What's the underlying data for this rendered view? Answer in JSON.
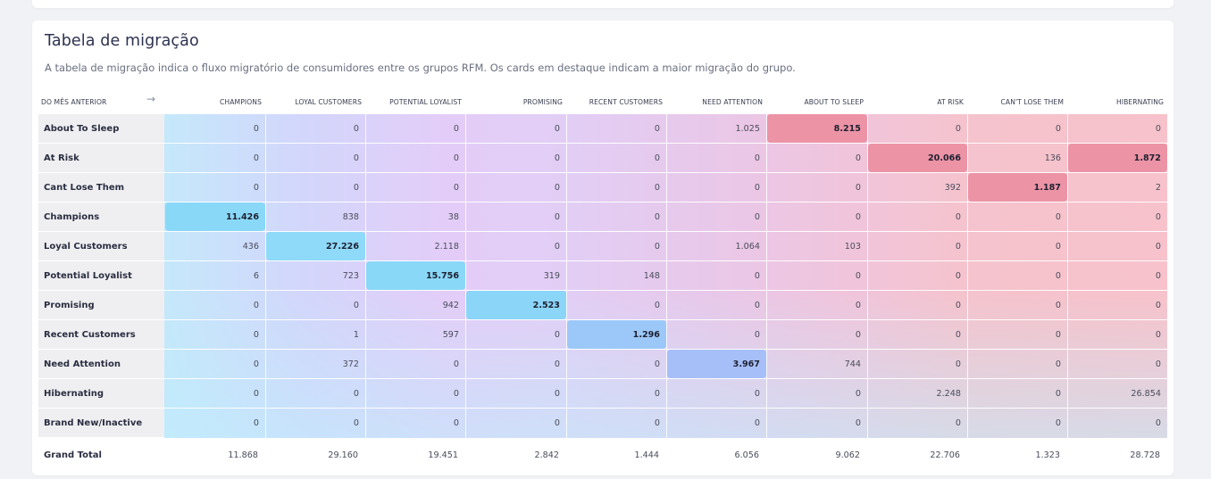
{
  "title": "Tabela de migração",
  "subtitle": "A tabela de migração indica o fluxo migratório de consumidores entre os grupos RFM. Os cards em destaque indicam a maior migração do grupo.",
  "corner_label": "DO MÊS ANTERIOR",
  "arrow_icon": "→",
  "columns": [
    "CHAMPIONS",
    "LOYAL CUSTOMERS",
    "POTENTIAL LOYALIST",
    "PROMISING",
    "RECENT CUSTOMERS",
    "NEED ATTENTION",
    "ABOUT TO SLEEP",
    "AT RISK",
    "CAN'T LOSE THEM",
    "HIBERNATING"
  ],
  "rows": [
    {
      "label": "About To Sleep",
      "values": [
        "0",
        "0",
        "0",
        "0",
        "0",
        "1.025",
        "8.215",
        "0",
        "0",
        "0"
      ],
      "highlight": 6
    },
    {
      "label": "At Risk",
      "values": [
        "0",
        "0",
        "0",
        "0",
        "0",
        "0",
        "0",
        "20.066",
        "136",
        "1.872"
      ],
      "highlight": [
        7,
        9
      ]
    },
    {
      "label": "Cant Lose Them",
      "values": [
        "0",
        "0",
        "0",
        "0",
        "0",
        "0",
        "0",
        "392",
        "1.187",
        "2"
      ],
      "highlight": 8
    },
    {
      "label": "Champions",
      "values": [
        "11.426",
        "838",
        "38",
        "0",
        "0",
        "0",
        "0",
        "0",
        "0",
        "0"
      ],
      "highlight": 0
    },
    {
      "label": "Loyal Customers",
      "values": [
        "436",
        "27.226",
        "2.118",
        "0",
        "0",
        "1.064",
        "103",
        "0",
        "0",
        "0"
      ],
      "highlight": 1
    },
    {
      "label": "Potential Loyalist",
      "values": [
        "6",
        "723",
        "15.756",
        "319",
        "148",
        "0",
        "0",
        "0",
        "0",
        "0"
      ],
      "highlight": 2
    },
    {
      "label": "Promising",
      "values": [
        "0",
        "0",
        "942",
        "2.523",
        "0",
        "0",
        "0",
        "0",
        "0",
        "0"
      ],
      "highlight": 3
    },
    {
      "label": "Recent Customers",
      "values": [
        "0",
        "1",
        "597",
        "0",
        "1.296",
        "0",
        "0",
        "0",
        "0",
        "0"
      ],
      "highlight": 4
    },
    {
      "label": "Need Attention",
      "values": [
        "0",
        "372",
        "0",
        "0",
        "0",
        "3.967",
        "744",
        "0",
        "0",
        "0"
      ],
      "highlight": 5
    },
    {
      "label": "Hibernating",
      "values": [
        "0",
        "0",
        "0",
        "0",
        "0",
        "0",
        "0",
        "2.248",
        "0",
        "26.854"
      ],
      "highlight": null
    },
    {
      "label": "Brand New/Inactive",
      "values": [
        "0",
        "0",
        "0",
        "0",
        "0",
        "0",
        "0",
        "0",
        "0",
        "0"
      ],
      "highlight": null
    }
  ],
  "grand_total_label": "Grand Total",
  "grand_totals": [
    "11.868",
    "29.160",
    "19.451",
    "2.842",
    "1.444",
    "6.056",
    "9.062",
    "22.706",
    "1.323",
    "28.728"
  ],
  "colors": {
    "highlight": [
      "#8ad8f8",
      "#8fd9f9",
      "#8ad8f8",
      "#8bd5f9",
      "#9cc8f9",
      "#a6bff8",
      "#ec93a6",
      "#ec93a6",
      "#ec93a6",
      "#ec93a6"
    ]
  }
}
